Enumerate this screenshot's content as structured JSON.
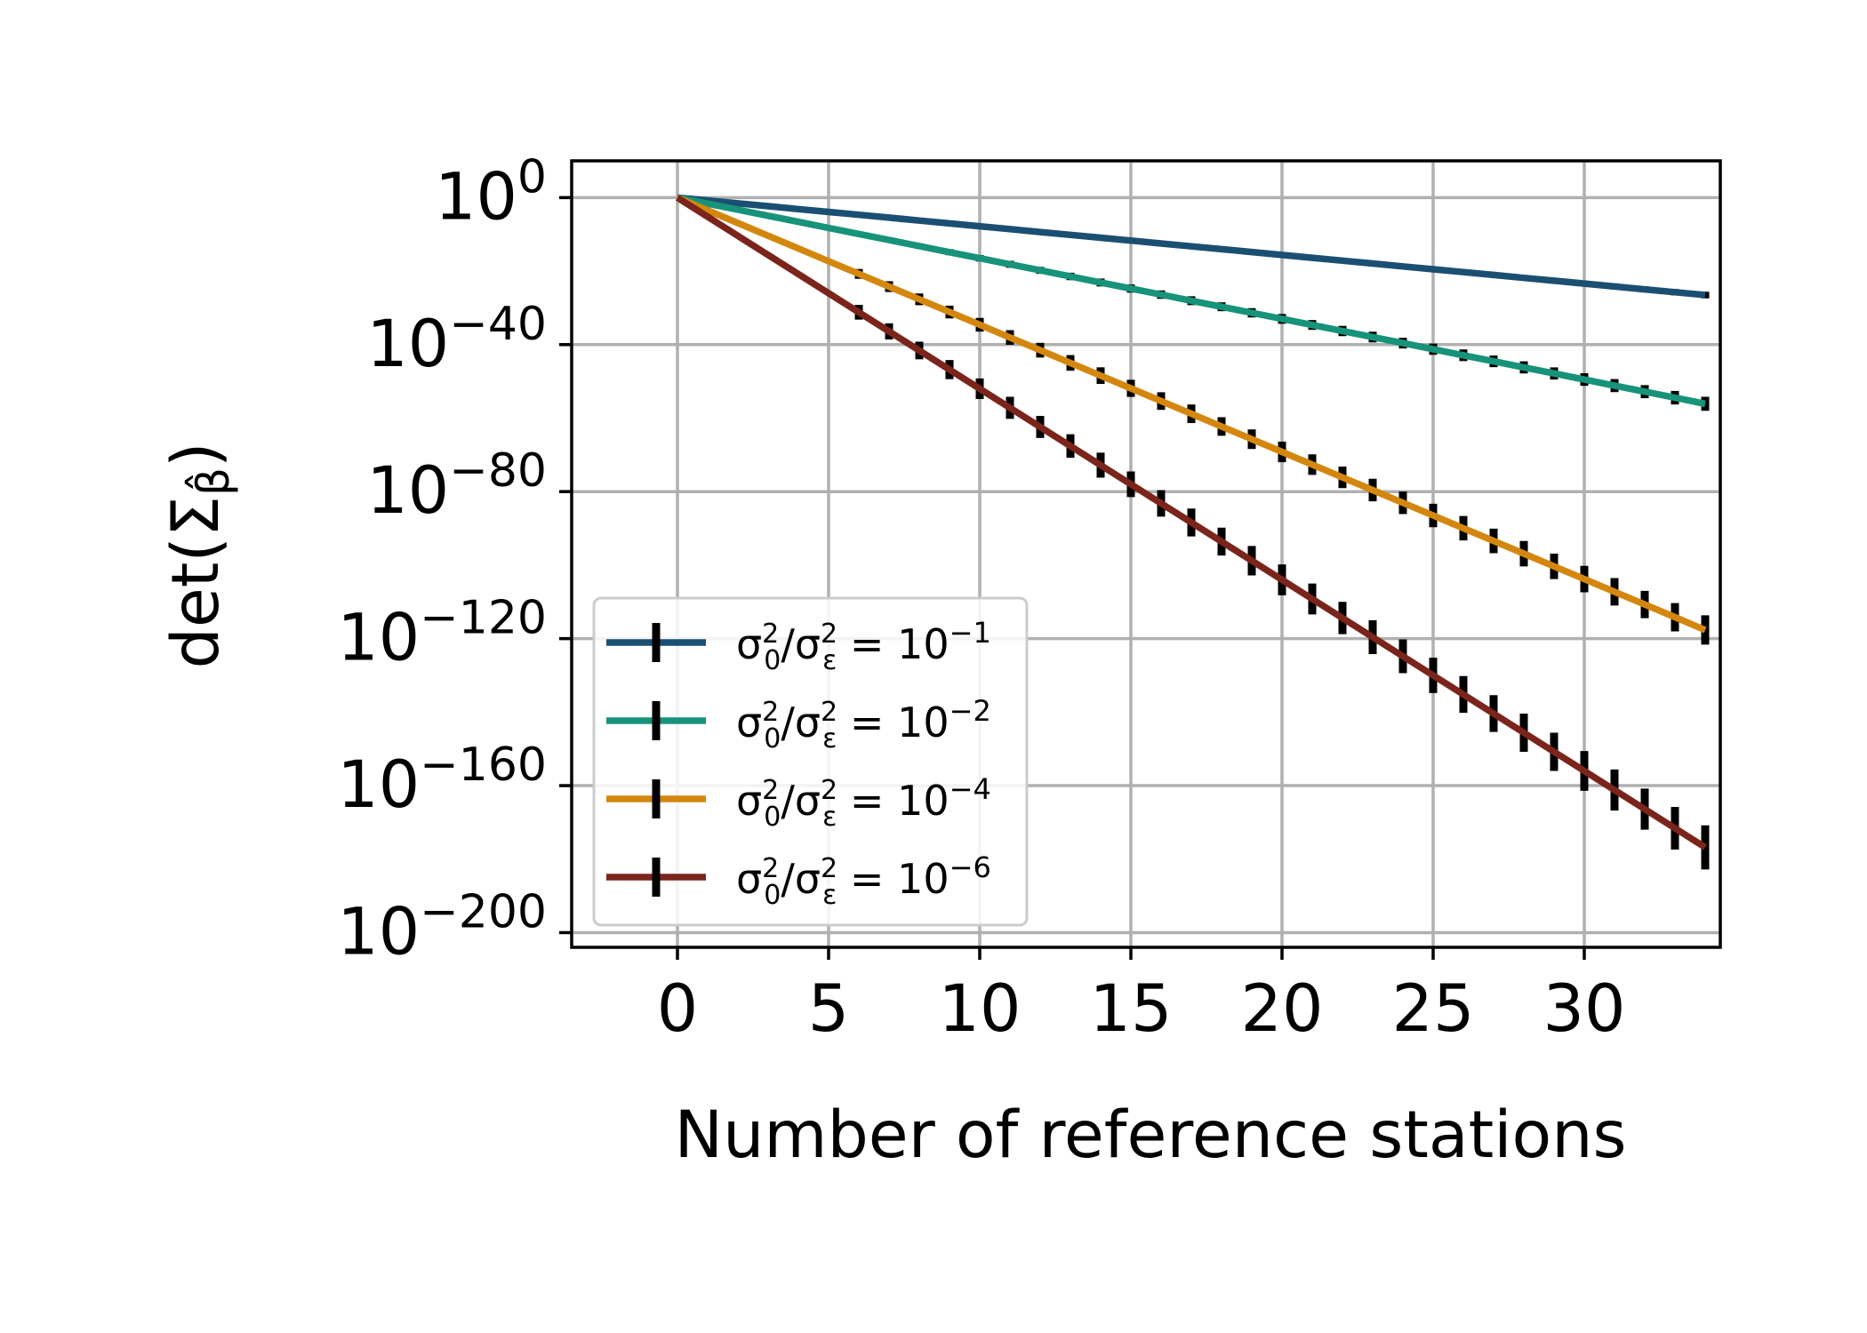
{
  "chart_data": {
    "type": "line",
    "xlabel": "Number of reference stations",
    "ylabel": "det(Σ_β̂)",
    "ylabel_base": "det(Σ",
    "ylabel_sub": "β̂",
    "ylabel_close": ")",
    "xlim": [
      -3.5,
      34.5
    ],
    "ylim_log10": [
      -204,
      10
    ],
    "yscale": "log",
    "grid": true,
    "legend_position": "lower-left",
    "x_ticks": [
      0,
      5,
      10,
      15,
      20,
      25,
      30
    ],
    "x_tick_labels": [
      "0",
      "5",
      "10",
      "15",
      "20",
      "25",
      "30"
    ],
    "y_ticks_log10": [
      0,
      -40,
      -80,
      -120,
      -160,
      -200
    ],
    "y_tick_labels": [
      {
        "base": "10",
        "exp": "0"
      },
      {
        "base": "10",
        "exp": "−40"
      },
      {
        "base": "10",
        "exp": "−80"
      },
      {
        "base": "10",
        "exp": "−120"
      },
      {
        "base": "10",
        "exp": "−160"
      },
      {
        "base": "10",
        "exp": "−200"
      }
    ],
    "x": [
      0,
      1,
      2,
      3,
      4,
      5,
      6,
      7,
      8,
      9,
      10,
      11,
      12,
      13,
      14,
      15,
      16,
      17,
      18,
      19,
      20,
      21,
      22,
      23,
      24,
      25,
      26,
      27,
      28,
      29,
      30,
      31,
      32,
      33,
      34
    ],
    "error_half_width_log10": [
      0,
      0,
      0,
      0,
      0,
      0,
      2.0,
      2.2,
      2.4,
      2.6,
      2.8,
      3.0,
      3.0,
      3.2,
      3.4,
      3.5,
      3.6,
      3.8,
      3.8,
      4.0,
      4.2,
      4.2,
      4.4,
      4.6,
      4.6,
      4.8,
      5.0,
      5.0,
      5.2,
      5.2,
      5.4,
      5.6,
      5.6,
      5.8,
      6.0
    ],
    "series": [
      {
        "legend_label": {
          "prefix": "σ",
          "sup1": "2",
          "sub1": "0",
          "mid": "/σ",
          "sup2": "2",
          "sub2": "ε",
          "eq": " = 10",
          "exp": "−1"
        },
        "color": "#1b4f72",
        "log10_slope": -0.78
      },
      {
        "legend_label": {
          "prefix": "σ",
          "sup1": "2",
          "sub1": "0",
          "mid": "/σ",
          "sup2": "2",
          "sub2": "ε",
          "eq": " = 10",
          "exp": "−2"
        },
        "color": "#17937a",
        "log10_slope": -1.65
      },
      {
        "legend_label": {
          "prefix": "σ",
          "sup1": "2",
          "sub1": "0",
          "mid": "/σ",
          "sup2": "2",
          "sub2": "ε",
          "eq": " = 10",
          "exp": "−4"
        },
        "color": "#d4870e",
        "log10_slope": -3.46
      },
      {
        "legend_label": {
          "prefix": "σ",
          "sup1": "2",
          "sub1": "0",
          "mid": "/σ",
          "sup2": "2",
          "sub2": "ε",
          "eq": " = 10",
          "exp": "−6"
        },
        "color": "#7b241c",
        "log10_slope": -5.2
      }
    ]
  }
}
